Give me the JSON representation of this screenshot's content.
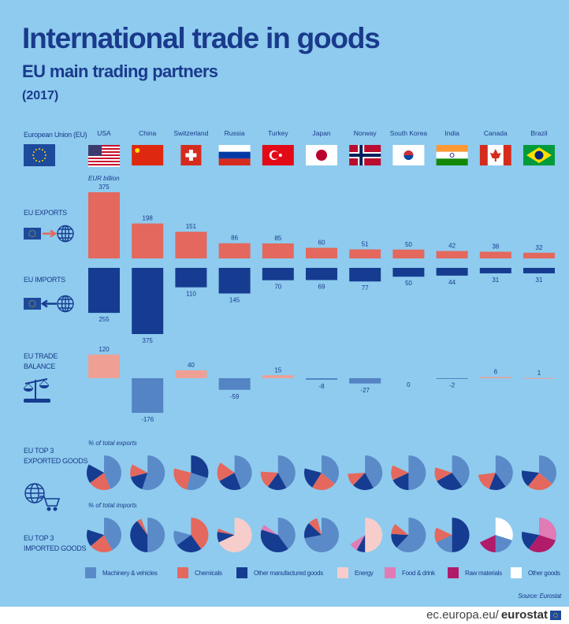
{
  "header": {
    "title": "International trade in goods",
    "subtitle": "EU main trading partners",
    "year": "(2017)"
  },
  "eu_label": "European Union (EU)",
  "row_labels": {
    "exports": "EU EXPORTS",
    "imports": "EU IMPORTS",
    "balance_1": "EU TRADE",
    "balance_2": "BALANCE",
    "top_exports_1": "EU TOP 3",
    "top_exports_2": "EXPORTED GOODS",
    "top_imports_1": "EU TOP 3",
    "top_imports_2": "IMPORTED GOODS"
  },
  "colors": {
    "background": "#8ecbee",
    "text": "#1a3a8c",
    "exports": "#e4685d",
    "imports": "#163c91",
    "balance_positive": "#eea095",
    "balance_negative": "#5484c4"
  },
  "icons": [
    "eu-flag-icon",
    "arrow-right-icon",
    "globe-icon",
    "arrow-left-icon",
    "scales-icon",
    "globe-cart-icon"
  ],
  "chart_data": {
    "type": "bar",
    "unit": "EUR billion",
    "categories": [
      "USA",
      "China",
      "Switzerland",
      "Russia",
      "Turkey",
      "Japan",
      "Norway",
      "South Korea",
      "India",
      "Canada",
      "Brazil"
    ],
    "flags": [
      "us",
      "cn",
      "ch",
      "ru",
      "tr",
      "jp",
      "no",
      "kr",
      "in",
      "ca",
      "br"
    ],
    "series": [
      {
        "name": "EU EXPORTS",
        "values": [
          375,
          198,
          151,
          86,
          85,
          60,
          51,
          50,
          42,
          38,
          32
        ]
      },
      {
        "name": "EU IMPORTS",
        "values": [
          255,
          375,
          110,
          145,
          70,
          69,
          77,
          50,
          44,
          31,
          31
        ]
      },
      {
        "name": "EU TRADE BALANCE",
        "values": [
          120,
          -176,
          40,
          -59,
          15,
          -8,
          -27,
          0,
          -2,
          6,
          1
        ]
      }
    ],
    "pies": {
      "exports_caption": "% of total exports",
      "imports_caption": "% of total imports",
      "categories": [
        {
          "key": "machinery",
          "name": "Machinery & vehicles",
          "color": "#5b8ac9"
        },
        {
          "key": "chemicals",
          "name": "Chemicals",
          "color": "#e4685d"
        },
        {
          "key": "other_manufactured",
          "name": "Other manufactured goods",
          "color": "#163c91"
        },
        {
          "key": "energy",
          "name": "Energy",
          "color": "#f6cdcb"
        },
        {
          "key": "food",
          "name": "Food & drink",
          "color": "#e07bb5"
        },
        {
          "key": "raw",
          "name": "Raw materials",
          "color": "#b01c6a"
        },
        {
          "key": "other",
          "name": "Other goods",
          "color": "#ffffff"
        }
      ],
      "exports": [
        [
          [
            "machinery",
            44
          ],
          [
            "chemicals",
            21
          ],
          [
            "other_manufactured",
            18
          ]
        ],
        [
          [
            "machinery",
            55
          ],
          [
            "other_manufactured",
            16
          ],
          [
            "chemicals",
            12
          ]
        ],
        [
          [
            "other_manufactured",
            30
          ],
          [
            "machinery",
            24
          ],
          [
            "chemicals",
            25
          ]
        ],
        [
          [
            "machinery",
            44
          ],
          [
            "other_manufactured",
            23
          ],
          [
            "chemicals",
            18
          ]
        ],
        [
          [
            "machinery",
            42
          ],
          [
            "other_manufactured",
            18
          ],
          [
            "chemicals",
            16
          ]
        ],
        [
          [
            "machinery",
            36
          ],
          [
            "chemicals",
            23
          ],
          [
            "other_manufactured",
            20
          ]
        ],
        [
          [
            "machinery",
            42
          ],
          [
            "other_manufactured",
            20
          ],
          [
            "chemicals",
            12
          ]
        ],
        [
          [
            "machinery",
            50
          ],
          [
            "other_manufactured",
            18
          ],
          [
            "chemicals",
            14
          ]
        ],
        [
          [
            "machinery",
            40
          ],
          [
            "other_manufactured",
            27
          ],
          [
            "chemicals",
            13
          ]
        ],
        [
          [
            "machinery",
            40
          ],
          [
            "other_manufactured",
            16
          ],
          [
            "chemicals",
            17
          ]
        ],
        [
          [
            "machinery",
            36
          ],
          [
            "chemicals",
            25
          ],
          [
            "other_manufactured",
            16
          ]
        ]
      ],
      "imports": [
        [
          [
            "machinery",
            42
          ],
          [
            "chemicals",
            22
          ],
          [
            "other_manufactured",
            16
          ]
        ],
        [
          [
            "machinery",
            50
          ],
          [
            "other_manufactured",
            40
          ],
          [
            "chemicals",
            4
          ]
        ],
        [
          [
            "chemicals",
            40
          ],
          [
            "other_manufactured",
            25
          ],
          [
            "machinery",
            14
          ]
        ],
        [
          [
            "energy",
            68
          ],
          [
            "other_manufactured",
            10
          ],
          [
            "chemicals",
            3
          ]
        ],
        [
          [
            "machinery",
            40
          ],
          [
            "other_manufactured",
            40
          ],
          [
            "food",
            5
          ]
        ],
        [
          [
            "machinery",
            72
          ],
          [
            "other_manufactured",
            15
          ],
          [
            "chemicals",
            9
          ]
        ],
        [
          [
            "energy",
            50
          ],
          [
            "other_manufactured",
            8
          ],
          [
            "food",
            8
          ]
        ],
        [
          [
            "machinery",
            62
          ],
          [
            "other_manufactured",
            14
          ],
          [
            "chemicals",
            10
          ]
        ],
        [
          [
            "other_manufactured",
            50
          ],
          [
            "machinery",
            18
          ],
          [
            "chemicals",
            14
          ]
        ],
        [
          [
            "other",
            30
          ],
          [
            "machinery",
            20
          ],
          [
            "raw",
            18
          ]
        ],
        [
          [
            "food",
            30
          ],
          [
            "raw",
            30
          ],
          [
            "other_manufactured",
            18
          ]
        ]
      ]
    }
  },
  "source": "Source: Eurostat",
  "footer": {
    "domain": "ec.europa.eu/",
    "brand": "eurostat"
  }
}
